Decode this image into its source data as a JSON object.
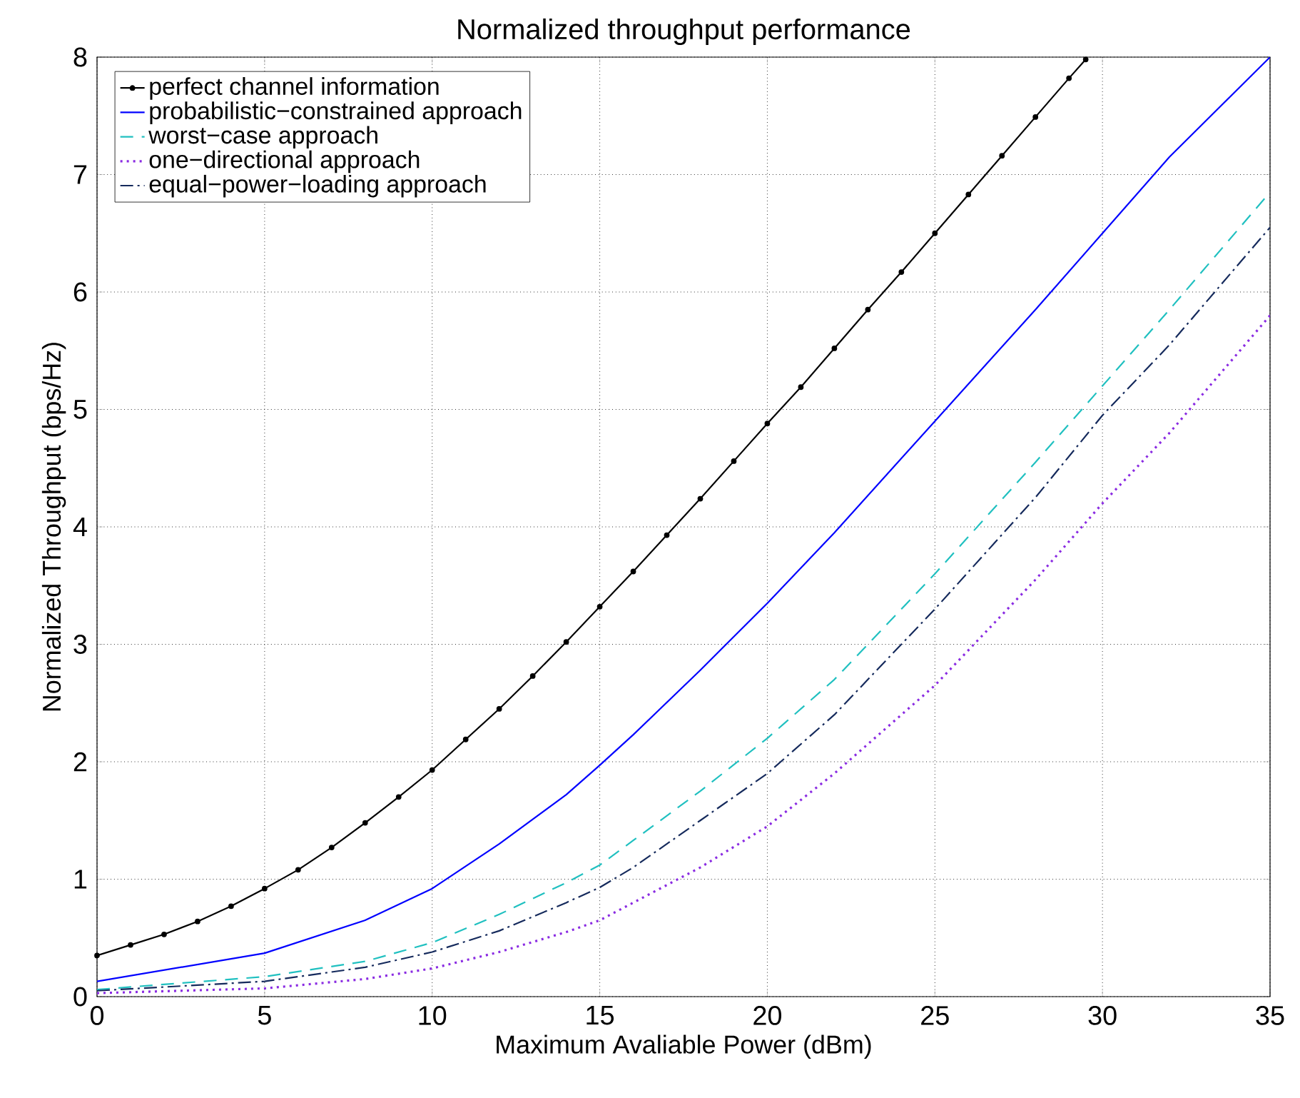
{
  "chart_data": {
    "type": "line",
    "title": "Normalized throughput performance",
    "xlabel": "Maximum Avaliable Power (dBm)",
    "ylabel": "Normalized Throughput (bps/Hz)",
    "xlim": [
      0,
      35
    ],
    "ylim": [
      0,
      8
    ],
    "xticks": [
      0,
      5,
      10,
      15,
      20,
      25,
      30,
      35
    ],
    "yticks": [
      0,
      1,
      2,
      3,
      4,
      5,
      6,
      7,
      8
    ],
    "grid": true,
    "legend": "top left",
    "series": [
      {
        "name": "perfect channel information",
        "color": "#000000",
        "marker": "circle",
        "line_style": "solid",
        "x": [
          0,
          1,
          2,
          3,
          4,
          5,
          6,
          7,
          8,
          9,
          10,
          11,
          12,
          13,
          14,
          15,
          16,
          17,
          18,
          19,
          20,
          21,
          22,
          23,
          24,
          25,
          26,
          27,
          28,
          29,
          29.5
        ],
        "values": [
          0.35,
          0.44,
          0.53,
          0.64,
          0.77,
          0.92,
          1.08,
          1.27,
          1.48,
          1.7,
          1.93,
          2.19,
          2.45,
          2.73,
          3.02,
          3.32,
          3.62,
          3.93,
          4.24,
          4.56,
          4.88,
          5.19,
          5.52,
          5.85,
          6.17,
          6.5,
          6.83,
          7.16,
          7.49,
          7.82,
          7.98
        ]
      },
      {
        "name": "probabilistic−constrained approach",
        "color": "#0000ff",
        "marker": "none",
        "line_style": "solid",
        "x": [
          0,
          5,
          8,
          10,
          12,
          14,
          15,
          16,
          18,
          20,
          22,
          25,
          28,
          30,
          32,
          35
        ],
        "values": [
          0.13,
          0.37,
          0.65,
          0.92,
          1.3,
          1.72,
          1.97,
          2.23,
          2.78,
          3.35,
          3.95,
          4.9,
          5.85,
          6.5,
          7.15,
          8.0
        ]
      },
      {
        "name": "worst−case approach",
        "color": "#20c0c0",
        "marker": "none",
        "line_style": "dashed",
        "x": [
          0,
          5,
          8,
          10,
          12,
          14,
          15,
          16,
          18,
          20,
          22,
          25,
          28,
          30,
          32,
          35
        ],
        "values": [
          0.06,
          0.17,
          0.3,
          0.46,
          0.7,
          0.97,
          1.12,
          1.33,
          1.75,
          2.2,
          2.7,
          3.6,
          4.55,
          5.2,
          5.85,
          6.85
        ]
      },
      {
        "name": "one−directional approach",
        "color": "#8a2be2",
        "marker": "none",
        "line_style": "dotted",
        "x": [
          0,
          5,
          8,
          10,
          12,
          14,
          15,
          16,
          18,
          20,
          22,
          25,
          28,
          30,
          32,
          35
        ],
        "values": [
          0.03,
          0.07,
          0.15,
          0.24,
          0.38,
          0.55,
          0.65,
          0.8,
          1.1,
          1.45,
          1.9,
          2.65,
          3.55,
          4.2,
          4.8,
          5.8
        ]
      },
      {
        "name": "equal−power−loading approach",
        "color": "#152a5c",
        "marker": "none",
        "line_style": "dashdotted",
        "x": [
          0,
          5,
          8,
          10,
          12,
          14,
          15,
          16,
          18,
          20,
          22,
          25,
          28,
          30,
          32,
          35
        ],
        "values": [
          0.05,
          0.13,
          0.25,
          0.38,
          0.56,
          0.8,
          0.93,
          1.1,
          1.5,
          1.9,
          2.4,
          3.3,
          4.25,
          4.95,
          5.55,
          6.55
        ]
      }
    ]
  }
}
